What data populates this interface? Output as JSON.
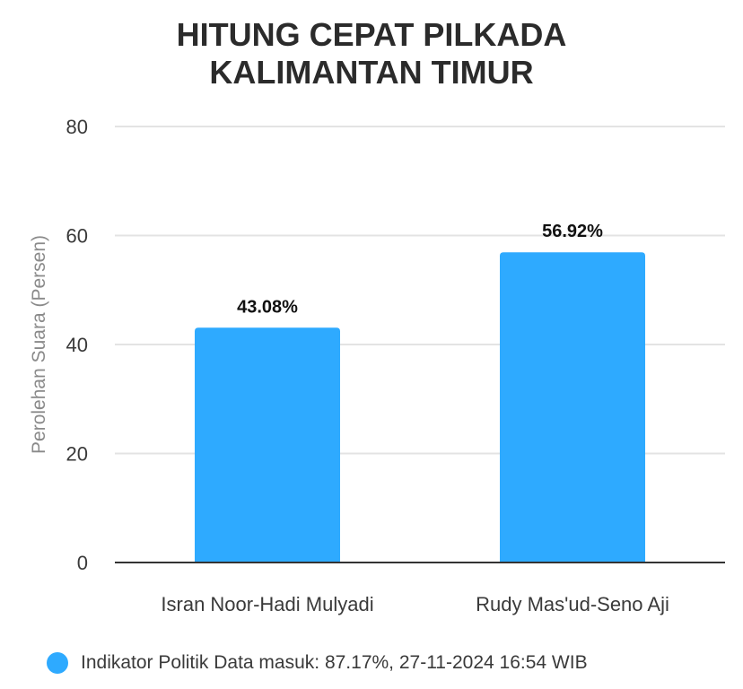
{
  "title_lines": [
    "HITUNG CEPAT PILKADA",
    "KALIMANTAN TIMUR"
  ],
  "chart_data": {
    "type": "bar",
    "title": "HITUNG CEPAT PILKADA KALIMANTAN TIMUR",
    "categories": [
      "Isran Noor-Hadi Mulyadi",
      "Rudy Mas'ud-Seno Aji"
    ],
    "values": [
      43.08,
      56.92
    ],
    "value_labels": [
      "43.08%",
      "56.92%"
    ],
    "xlabel": "",
    "ylabel": "Perolehan Suara (Persen)",
    "ylim": [
      0,
      80
    ],
    "yticks": [
      0,
      20,
      40,
      60,
      80
    ],
    "grid": true,
    "legend_position": "bottom-left",
    "series": [
      {
        "name": "Indikator Politik Data masuk: 87.17%, 27-11-2024 16:54 WIB",
        "values": [
          43.08,
          56.92
        ]
      }
    ],
    "colors": {
      "bar": "#2eaaff",
      "grid": "#e3e3e3",
      "axis": "#333333"
    }
  }
}
